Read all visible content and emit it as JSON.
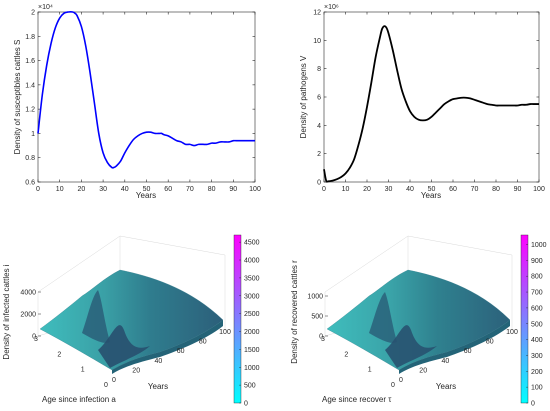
{
  "chart_data": [
    {
      "type": "line",
      "xlabel": "Years",
      "ylabel": "Density of susceptibles cattles S",
      "y_exponent": "×10⁴",
      "xlim": [
        0,
        100
      ],
      "ylim": [
        0.6,
        2
      ],
      "xticks": [
        0,
        10,
        20,
        30,
        40,
        50,
        60,
        70,
        80,
        90,
        100
      ],
      "yticks": [
        0.6,
        0.8,
        1,
        1.2,
        1.4,
        1.6,
        1.8,
        2
      ],
      "line_color": "#0000ff",
      "x": [
        0,
        2,
        4,
        6,
        8,
        10,
        12,
        14,
        16,
        17,
        18,
        20,
        22,
        24,
        26,
        28,
        30,
        32,
        34,
        35,
        36,
        38,
        40,
        42,
        44,
        46,
        48,
        50,
        52,
        54,
        56,
        57,
        58,
        60,
        62,
        64,
        66,
        68,
        70,
        72,
        74,
        76,
        78,
        80,
        82,
        84,
        86,
        88,
        90,
        92,
        94,
        96,
        98,
        100
      ],
      "y": [
        1.0,
        1.32,
        1.56,
        1.74,
        1.87,
        1.95,
        1.99,
        2.0,
        2.0,
        1.99,
        1.97,
        1.88,
        1.72,
        1.5,
        1.25,
        1.0,
        0.84,
        0.76,
        0.72,
        0.72,
        0.73,
        0.77,
        0.84,
        0.9,
        0.95,
        0.98,
        1.0,
        1.01,
        1.01,
        1.0,
        1.0,
        1.0,
        0.99,
        0.98,
        0.96,
        0.94,
        0.93,
        0.91,
        0.91,
        0.9,
        0.91,
        0.91,
        0.91,
        0.92,
        0.92,
        0.93,
        0.93,
        0.93,
        0.94,
        0.94,
        0.94,
        0.94,
        0.94,
        0.94
      ]
    },
    {
      "type": "line",
      "xlabel": "Years",
      "ylabel": "Density of pathogens V",
      "y_exponent": "×10⁶",
      "xlim": [
        0,
        100
      ],
      "ylim": [
        0,
        12
      ],
      "xticks": [
        0,
        10,
        20,
        30,
        40,
        50,
        60,
        70,
        80,
        90,
        100
      ],
      "yticks": [
        0,
        2,
        4,
        6,
        8,
        10,
        12
      ],
      "line_color": "#000000",
      "x": [
        0,
        1,
        2,
        4,
        6,
        8,
        10,
        12,
        14,
        16,
        18,
        20,
        22,
        24,
        26,
        27,
        28,
        29,
        30,
        32,
        34,
        36,
        38,
        40,
        42,
        44,
        46,
        48,
        50,
        52,
        54,
        56,
        58,
        60,
        62,
        64,
        66,
        68,
        70,
        72,
        74,
        76,
        78,
        80,
        82,
        84,
        86,
        88,
        90,
        92,
        94,
        96,
        98,
        100
      ],
      "y": [
        0.9,
        0.1,
        0.05,
        0.1,
        0.2,
        0.35,
        0.6,
        1.0,
        1.6,
        2.6,
        3.8,
        5.3,
        7.0,
        8.8,
        10.2,
        10.8,
        11.0,
        10.9,
        10.5,
        9.3,
        7.9,
        6.6,
        5.7,
        5.0,
        4.6,
        4.4,
        4.35,
        4.4,
        4.6,
        4.9,
        5.2,
        5.5,
        5.7,
        5.85,
        5.9,
        5.95,
        5.95,
        5.9,
        5.8,
        5.7,
        5.6,
        5.5,
        5.45,
        5.4,
        5.4,
        5.4,
        5.4,
        5.4,
        5.4,
        5.45,
        5.45,
        5.5,
        5.5,
        5.5
      ]
    },
    {
      "type": "surface3d",
      "zlabel": "Density of infected cattles i",
      "xlabel": "Years",
      "ylabel": "Age since infection a",
      "xticks": [
        0,
        20,
        40,
        60,
        80,
        100
      ],
      "yticks": [
        0,
        1,
        2,
        3
      ],
      "zticks": [
        0,
        2000,
        4000
      ],
      "colorbar_ticks": [
        0,
        500,
        1000,
        1500,
        2000,
        2500,
        3000,
        3500,
        4000,
        4500
      ],
      "colorbar_range": [
        0,
        4700
      ]
    },
    {
      "type": "surface3d",
      "zlabel": "Density of recovered cattles r",
      "xlabel": "Years",
      "ylabel": "Age since recover τ",
      "xticks": [
        0,
        20,
        40,
        60,
        80,
        100
      ],
      "yticks": [
        0,
        1,
        2,
        3
      ],
      "zticks": [
        0,
        500,
        1000
      ],
      "colorbar_ticks": [
        0,
        100,
        200,
        300,
        400,
        500,
        600,
        700,
        800,
        900,
        1000
      ],
      "colorbar_range": [
        0,
        1060
      ]
    }
  ]
}
